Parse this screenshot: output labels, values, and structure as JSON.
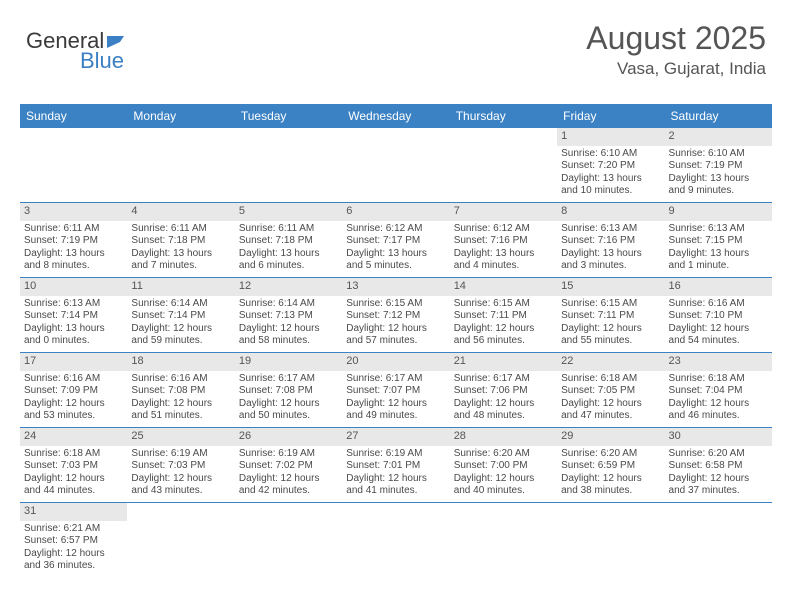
{
  "logo": {
    "text_dark": "General",
    "text_blue": "Blue"
  },
  "title": {
    "month": "August 2025",
    "location": "Vasa, Gujarat, India"
  },
  "colors": {
    "header_bg": "#3b82c4",
    "header_text": "#ffffff",
    "daynum_bg": "#e8e8e8",
    "row_border": "#3b82c4",
    "body_text": "#4a4a4a",
    "title_text": "#555555"
  },
  "day_headers": [
    "Sunday",
    "Monday",
    "Tuesday",
    "Wednesday",
    "Thursday",
    "Friday",
    "Saturday"
  ],
  "weeks": [
    [
      {
        "empty": true
      },
      {
        "empty": true
      },
      {
        "empty": true
      },
      {
        "empty": true
      },
      {
        "empty": true
      },
      {
        "num": "1",
        "sunrise": "Sunrise: 6:10 AM",
        "sunset": "Sunset: 7:20 PM",
        "daylight": "Daylight: 13 hours and 10 minutes."
      },
      {
        "num": "2",
        "sunrise": "Sunrise: 6:10 AM",
        "sunset": "Sunset: 7:19 PM",
        "daylight": "Daylight: 13 hours and 9 minutes."
      }
    ],
    [
      {
        "num": "3",
        "sunrise": "Sunrise: 6:11 AM",
        "sunset": "Sunset: 7:19 PM",
        "daylight": "Daylight: 13 hours and 8 minutes."
      },
      {
        "num": "4",
        "sunrise": "Sunrise: 6:11 AM",
        "sunset": "Sunset: 7:18 PM",
        "daylight": "Daylight: 13 hours and 7 minutes."
      },
      {
        "num": "5",
        "sunrise": "Sunrise: 6:11 AM",
        "sunset": "Sunset: 7:18 PM",
        "daylight": "Daylight: 13 hours and 6 minutes."
      },
      {
        "num": "6",
        "sunrise": "Sunrise: 6:12 AM",
        "sunset": "Sunset: 7:17 PM",
        "daylight": "Daylight: 13 hours and 5 minutes."
      },
      {
        "num": "7",
        "sunrise": "Sunrise: 6:12 AM",
        "sunset": "Sunset: 7:16 PM",
        "daylight": "Daylight: 13 hours and 4 minutes."
      },
      {
        "num": "8",
        "sunrise": "Sunrise: 6:13 AM",
        "sunset": "Sunset: 7:16 PM",
        "daylight": "Daylight: 13 hours and 3 minutes."
      },
      {
        "num": "9",
        "sunrise": "Sunrise: 6:13 AM",
        "sunset": "Sunset: 7:15 PM",
        "daylight": "Daylight: 13 hours and 1 minute."
      }
    ],
    [
      {
        "num": "10",
        "sunrise": "Sunrise: 6:13 AM",
        "sunset": "Sunset: 7:14 PM",
        "daylight": "Daylight: 13 hours and 0 minutes."
      },
      {
        "num": "11",
        "sunrise": "Sunrise: 6:14 AM",
        "sunset": "Sunset: 7:14 PM",
        "daylight": "Daylight: 12 hours and 59 minutes."
      },
      {
        "num": "12",
        "sunrise": "Sunrise: 6:14 AM",
        "sunset": "Sunset: 7:13 PM",
        "daylight": "Daylight: 12 hours and 58 minutes."
      },
      {
        "num": "13",
        "sunrise": "Sunrise: 6:15 AM",
        "sunset": "Sunset: 7:12 PM",
        "daylight": "Daylight: 12 hours and 57 minutes."
      },
      {
        "num": "14",
        "sunrise": "Sunrise: 6:15 AM",
        "sunset": "Sunset: 7:11 PM",
        "daylight": "Daylight: 12 hours and 56 minutes."
      },
      {
        "num": "15",
        "sunrise": "Sunrise: 6:15 AM",
        "sunset": "Sunset: 7:11 PM",
        "daylight": "Daylight: 12 hours and 55 minutes."
      },
      {
        "num": "16",
        "sunrise": "Sunrise: 6:16 AM",
        "sunset": "Sunset: 7:10 PM",
        "daylight": "Daylight: 12 hours and 54 minutes."
      }
    ],
    [
      {
        "num": "17",
        "sunrise": "Sunrise: 6:16 AM",
        "sunset": "Sunset: 7:09 PM",
        "daylight": "Daylight: 12 hours and 53 minutes."
      },
      {
        "num": "18",
        "sunrise": "Sunrise: 6:16 AM",
        "sunset": "Sunset: 7:08 PM",
        "daylight": "Daylight: 12 hours and 51 minutes."
      },
      {
        "num": "19",
        "sunrise": "Sunrise: 6:17 AM",
        "sunset": "Sunset: 7:08 PM",
        "daylight": "Daylight: 12 hours and 50 minutes."
      },
      {
        "num": "20",
        "sunrise": "Sunrise: 6:17 AM",
        "sunset": "Sunset: 7:07 PM",
        "daylight": "Daylight: 12 hours and 49 minutes."
      },
      {
        "num": "21",
        "sunrise": "Sunrise: 6:17 AM",
        "sunset": "Sunset: 7:06 PM",
        "daylight": "Daylight: 12 hours and 48 minutes."
      },
      {
        "num": "22",
        "sunrise": "Sunrise: 6:18 AM",
        "sunset": "Sunset: 7:05 PM",
        "daylight": "Daylight: 12 hours and 47 minutes."
      },
      {
        "num": "23",
        "sunrise": "Sunrise: 6:18 AM",
        "sunset": "Sunset: 7:04 PM",
        "daylight": "Daylight: 12 hours and 46 minutes."
      }
    ],
    [
      {
        "num": "24",
        "sunrise": "Sunrise: 6:18 AM",
        "sunset": "Sunset: 7:03 PM",
        "daylight": "Daylight: 12 hours and 44 minutes."
      },
      {
        "num": "25",
        "sunrise": "Sunrise: 6:19 AM",
        "sunset": "Sunset: 7:03 PM",
        "daylight": "Daylight: 12 hours and 43 minutes."
      },
      {
        "num": "26",
        "sunrise": "Sunrise: 6:19 AM",
        "sunset": "Sunset: 7:02 PM",
        "daylight": "Daylight: 12 hours and 42 minutes."
      },
      {
        "num": "27",
        "sunrise": "Sunrise: 6:19 AM",
        "sunset": "Sunset: 7:01 PM",
        "daylight": "Daylight: 12 hours and 41 minutes."
      },
      {
        "num": "28",
        "sunrise": "Sunrise: 6:20 AM",
        "sunset": "Sunset: 7:00 PM",
        "daylight": "Daylight: 12 hours and 40 minutes."
      },
      {
        "num": "29",
        "sunrise": "Sunrise: 6:20 AM",
        "sunset": "Sunset: 6:59 PM",
        "daylight": "Daylight: 12 hours and 38 minutes."
      },
      {
        "num": "30",
        "sunrise": "Sunrise: 6:20 AM",
        "sunset": "Sunset: 6:58 PM",
        "daylight": "Daylight: 12 hours and 37 minutes."
      }
    ],
    [
      {
        "num": "31",
        "sunrise": "Sunrise: 6:21 AM",
        "sunset": "Sunset: 6:57 PM",
        "daylight": "Daylight: 12 hours and 36 minutes."
      },
      {
        "empty": true
      },
      {
        "empty": true
      },
      {
        "empty": true
      },
      {
        "empty": true
      },
      {
        "empty": true
      },
      {
        "empty": true
      }
    ]
  ]
}
